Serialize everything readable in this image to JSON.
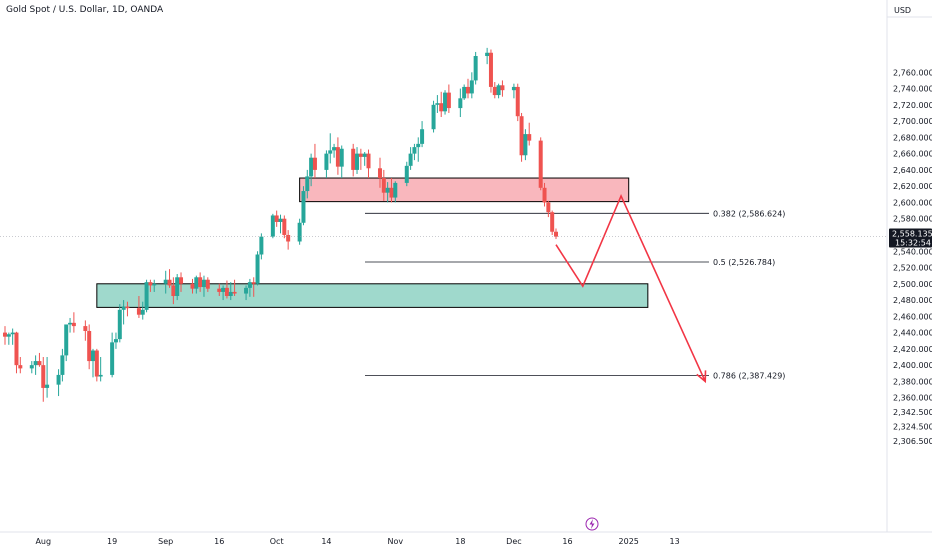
{
  "header": {
    "title": "Gold Spot / U.S. Dollar, 1D, OANDA"
  },
  "price_axis": {
    "currency": "USD"
  },
  "time_axis": {
    "bolt_icon": "bolt-icon"
  },
  "price_tag": {
    "price": "2,558.135",
    "countdown": "15:32:54"
  },
  "colors": {
    "up": "#26a69a",
    "down": "#ef5350",
    "resistance_fill": "#f9b7bd",
    "support_fill": "#9fd9cc",
    "arrow": "#f23645",
    "axis_bg": "#ffffff"
  },
  "chart_data": {
    "type": "candlestick",
    "title": "Gold Spot / U.S. Dollar, 1D, OANDA",
    "y_ticks": [
      {
        "label": "2,760.000",
        "value": 2760
      },
      {
        "label": "2,740.000",
        "value": 2740
      },
      {
        "label": "2,720.000",
        "value": 2720
      },
      {
        "label": "2,700.000",
        "value": 2700
      },
      {
        "label": "2,680.000",
        "value": 2680
      },
      {
        "label": "2,660.000",
        "value": 2660
      },
      {
        "label": "2,640.000",
        "value": 2640
      },
      {
        "label": "2,620.000",
        "value": 2620
      },
      {
        "label": "2,600.000",
        "value": 2600
      },
      {
        "label": "2,580.000",
        "value": 2580
      },
      {
        "label": "2,540.000",
        "value": 2540
      },
      {
        "label": "2,520.000",
        "value": 2520
      },
      {
        "label": "2,500.000",
        "value": 2500
      },
      {
        "label": "2,480.000",
        "value": 2480
      },
      {
        "label": "2,460.000",
        "value": 2460
      },
      {
        "label": "2,440.000",
        "value": 2440
      },
      {
        "label": "2,420.000",
        "value": 2420
      },
      {
        "label": "2,400.000",
        "value": 2400
      },
      {
        "label": "2,380.000",
        "value": 2380
      },
      {
        "label": "2,360.000",
        "value": 2360
      },
      {
        "label": "2,342.500",
        "value": 2342.5
      },
      {
        "label": "2,324.500",
        "value": 2324.5
      },
      {
        "label": "2,306.500",
        "value": 2306.5
      }
    ],
    "x_ticks": [
      {
        "label": "Aug",
        "date": "2024-08-01"
      },
      {
        "label": "19",
        "date": "2024-08-19"
      },
      {
        "label": "Sep",
        "date": "2024-09-02"
      },
      {
        "label": "16",
        "date": "2024-09-16"
      },
      {
        "label": "Oct",
        "date": "2024-10-01"
      },
      {
        "label": "14",
        "date": "2024-10-14"
      },
      {
        "label": "Nov",
        "date": "2024-11-01"
      },
      {
        "label": "18",
        "date": "2024-11-18"
      },
      {
        "label": "Dec",
        "date": "2024-12-02"
      },
      {
        "label": "16",
        "date": "2024-12-16"
      },
      {
        "label": "2025",
        "date": "2025-01-01"
      },
      {
        "label": "13",
        "date": "2025-01-13"
      }
    ],
    "candles": [
      {
        "date": "2024-07-22",
        "o": 2440,
        "h": 2448,
        "l": 2425,
        "c": 2435
      },
      {
        "date": "2024-07-23",
        "o": 2435,
        "h": 2440,
        "l": 2425,
        "c": 2438
      },
      {
        "date": "2024-07-24",
        "o": 2438,
        "h": 2445,
        "l": 2425,
        "c": 2440
      },
      {
        "date": "2024-07-25",
        "o": 2440,
        "h": 2441,
        "l": 2390,
        "c": 2400
      },
      {
        "date": "2024-07-26",
        "o": 2400,
        "h": 2410,
        "l": 2390,
        "c": 2396
      },
      {
        "date": "2024-07-29",
        "o": 2396,
        "h": 2405,
        "l": 2390,
        "c": 2400
      },
      {
        "date": "2024-07-30",
        "o": 2400,
        "h": 2412,
        "l": 2388,
        "c": 2405
      },
      {
        "date": "2024-07-31",
        "o": 2405,
        "h": 2415,
        "l": 2398,
        "c": 2400
      },
      {
        "date": "2024-08-01",
        "o": 2400,
        "h": 2410,
        "l": 2355,
        "c": 2372
      },
      {
        "date": "2024-08-02",
        "o": 2372,
        "h": 2410,
        "l": 2360,
        "c": 2376
      },
      {
        "date": "2024-08-05",
        "o": 2376,
        "h": 2395,
        "l": 2362,
        "c": 2388
      },
      {
        "date": "2024-08-06",
        "o": 2388,
        "h": 2420,
        "l": 2380,
        "c": 2412
      },
      {
        "date": "2024-08-07",
        "o": 2412,
        "h": 2450,
        "l": 2405,
        "c": 2450
      },
      {
        "date": "2024-08-08",
        "o": 2450,
        "h": 2458,
        "l": 2440,
        "c": 2452
      },
      {
        "date": "2024-08-09",
        "o": 2452,
        "h": 2465,
        "l": 2440,
        "c": 2448
      },
      {
        "date": "2024-08-12",
        "o": 2448,
        "h": 2455,
        "l": 2430,
        "c": 2442
      },
      {
        "date": "2024-08-13",
        "o": 2442,
        "h": 2450,
        "l": 2395,
        "c": 2405
      },
      {
        "date": "2024-08-14",
        "o": 2405,
        "h": 2420,
        "l": 2385,
        "c": 2418
      },
      {
        "date": "2024-08-15",
        "o": 2418,
        "h": 2420,
        "l": 2380,
        "c": 2386
      },
      {
        "date": "2024-08-16",
        "o": 2386,
        "h": 2410,
        "l": 2380,
        "c": 2388
      },
      {
        "date": "2024-08-19",
        "o": 2388,
        "h": 2440,
        "l": 2385,
        "c": 2428
      },
      {
        "date": "2024-08-20",
        "o": 2428,
        "h": 2440,
        "l": 2420,
        "c": 2432
      },
      {
        "date": "2024-08-21",
        "o": 2432,
        "h": 2475,
        "l": 2428,
        "c": 2468
      },
      {
        "date": "2024-08-22",
        "o": 2468,
        "h": 2480,
        "l": 2450,
        "c": 2472
      },
      {
        "date": "2024-08-23",
        "o": 2472,
        "h": 2478,
        "l": 2460,
        "c": 2470
      },
      {
        "date": "2024-08-26",
        "o": 2470,
        "h": 2485,
        "l": 2458,
        "c": 2462
      },
      {
        "date": "2024-08-27",
        "o": 2462,
        "h": 2478,
        "l": 2456,
        "c": 2468
      },
      {
        "date": "2024-08-28",
        "o": 2468,
        "h": 2505,
        "l": 2465,
        "c": 2502
      },
      {
        "date": "2024-08-29",
        "o": 2502,
        "h": 2505,
        "l": 2490,
        "c": 2498
      },
      {
        "date": "2024-08-30",
        "o": 2498,
        "h": 2505,
        "l": 2490,
        "c": 2500
      },
      {
        "date": "2024-09-02",
        "o": 2500,
        "h": 2516,
        "l": 2488,
        "c": 2505
      },
      {
        "date": "2024-09-03",
        "o": 2505,
        "h": 2518,
        "l": 2495,
        "c": 2498
      },
      {
        "date": "2024-09-04",
        "o": 2498,
        "h": 2508,
        "l": 2475,
        "c": 2485
      },
      {
        "date": "2024-09-05",
        "o": 2485,
        "h": 2512,
        "l": 2480,
        "c": 2508
      },
      {
        "date": "2024-09-06",
        "o": 2508,
        "h": 2514,
        "l": 2490,
        "c": 2500
      },
      {
        "date": "2024-09-09",
        "o": 2500,
        "h": 2506,
        "l": 2488,
        "c": 2494
      },
      {
        "date": "2024-09-10",
        "o": 2494,
        "h": 2510,
        "l": 2488,
        "c": 2508
      },
      {
        "date": "2024-09-11",
        "o": 2508,
        "h": 2514,
        "l": 2490,
        "c": 2496
      },
      {
        "date": "2024-09-12",
        "o": 2496,
        "h": 2510,
        "l": 2484,
        "c": 2505
      },
      {
        "date": "2024-09-13",
        "o": 2505,
        "h": 2508,
        "l": 2490,
        "c": 2494
      },
      {
        "date": "2024-09-16",
        "o": 2494,
        "h": 2500,
        "l": 2485,
        "c": 2490
      },
      {
        "date": "2024-09-17",
        "o": 2490,
        "h": 2498,
        "l": 2480,
        "c": 2495
      },
      {
        "date": "2024-09-18",
        "o": 2495,
        "h": 2504,
        "l": 2482,
        "c": 2485
      },
      {
        "date": "2024-09-19",
        "o": 2485,
        "h": 2502,
        "l": 2480,
        "c": 2490
      },
      {
        "date": "2024-09-20",
        "o": 2490,
        "h": 2505,
        "l": 2485,
        "c": 2488
      },
      {
        "date": "2024-09-23",
        "o": 2488,
        "h": 2498,
        "l": 2480,
        "c": 2495
      },
      {
        "date": "2024-09-24",
        "o": 2495,
        "h": 2506,
        "l": 2484,
        "c": 2502
      },
      {
        "date": "2024-09-25",
        "o": 2502,
        "h": 2508,
        "l": 2484,
        "c": 2500
      },
      {
        "date": "2024-09-26",
        "o": 2500,
        "h": 2540,
        "l": 2498,
        "c": 2536
      },
      {
        "date": "2024-09-27",
        "o": 2536,
        "h": 2562,
        "l": 2530,
        "c": 2558
      },
      {
        "date": "2024-09-30",
        "o": 2558,
        "h": 2586,
        "l": 2556,
        "c": 2584
      },
      {
        "date": "2024-10-01",
        "o": 2584,
        "h": 2590,
        "l": 2570,
        "c": 2576
      },
      {
        "date": "2024-10-02",
        "o": 2576,
        "h": 2585,
        "l": 2562,
        "c": 2580
      },
      {
        "date": "2024-10-03",
        "o": 2580,
        "h": 2584,
        "l": 2556,
        "c": 2560
      },
      {
        "date": "2024-10-04",
        "o": 2560,
        "h": 2566,
        "l": 2542,
        "c": 2552
      },
      {
        "date": "2024-10-07",
        "o": 2552,
        "h": 2580,
        "l": 2548,
        "c": 2575
      },
      {
        "date": "2024-10-08",
        "o": 2575,
        "h": 2620,
        "l": 2572,
        "c": 2614
      },
      {
        "date": "2024-10-09",
        "o": 2614,
        "h": 2640,
        "l": 2605,
        "c": 2632
      },
      {
        "date": "2024-10-10",
        "o": 2632,
        "h": 2660,
        "l": 2620,
        "c": 2655
      },
      {
        "date": "2024-10-11",
        "o": 2655,
        "h": 2672,
        "l": 2630,
        "c": 2640
      },
      {
        "date": "2024-10-14",
        "o": 2640,
        "h": 2664,
        "l": 2630,
        "c": 2660
      },
      {
        "date": "2024-10-15",
        "o": 2660,
        "h": 2685,
        "l": 2648,
        "c": 2664
      },
      {
        "date": "2024-10-16",
        "o": 2664,
        "h": 2672,
        "l": 2655,
        "c": 2668
      },
      {
        "date": "2024-10-17",
        "o": 2668,
        "h": 2680,
        "l": 2634,
        "c": 2644
      },
      {
        "date": "2024-10-18",
        "o": 2644,
        "h": 2670,
        "l": 2630,
        "c": 2666
      },
      {
        "date": "2024-10-21",
        "o": 2666,
        "h": 2672,
        "l": 2632,
        "c": 2640
      },
      {
        "date": "2024-10-22",
        "o": 2640,
        "h": 2668,
        "l": 2635,
        "c": 2660
      },
      {
        "date": "2024-10-23",
        "o": 2660,
        "h": 2666,
        "l": 2640,
        "c": 2656
      },
      {
        "date": "2024-10-24",
        "o": 2656,
        "h": 2662,
        "l": 2645,
        "c": 2660
      },
      {
        "date": "2024-10-25",
        "o": 2660,
        "h": 2665,
        "l": 2630,
        "c": 2642
      },
      {
        "date": "2024-10-28",
        "o": 2642,
        "h": 2655,
        "l": 2618,
        "c": 2630
      },
      {
        "date": "2024-10-29",
        "o": 2630,
        "h": 2640,
        "l": 2602,
        "c": 2612
      },
      {
        "date": "2024-10-30",
        "o": 2612,
        "h": 2625,
        "l": 2600,
        "c": 2618
      },
      {
        "date": "2024-10-31",
        "o": 2618,
        "h": 2630,
        "l": 2600,
        "c": 2606
      },
      {
        "date": "2024-11-01",
        "o": 2606,
        "h": 2626,
        "l": 2600,
        "c": 2624
      },
      {
        "date": "2024-11-04",
        "o": 2624,
        "h": 2650,
        "l": 2620,
        "c": 2645
      },
      {
        "date": "2024-11-05",
        "o": 2645,
        "h": 2668,
        "l": 2640,
        "c": 2660
      },
      {
        "date": "2024-11-06",
        "o": 2660,
        "h": 2672,
        "l": 2652,
        "c": 2668
      },
      {
        "date": "2024-11-07",
        "o": 2668,
        "h": 2680,
        "l": 2650,
        "c": 2672
      },
      {
        "date": "2024-11-08",
        "o": 2672,
        "h": 2700,
        "l": 2668,
        "c": 2690
      },
      {
        "date": "2024-11-11",
        "o": 2690,
        "h": 2725,
        "l": 2686,
        "c": 2720
      },
      {
        "date": "2024-11-12",
        "o": 2720,
        "h": 2732,
        "l": 2710,
        "c": 2722
      },
      {
        "date": "2024-11-13",
        "o": 2722,
        "h": 2736,
        "l": 2705,
        "c": 2712
      },
      {
        "date": "2024-11-14",
        "o": 2712,
        "h": 2738,
        "l": 2708,
        "c": 2735
      },
      {
        "date": "2024-11-15",
        "o": 2735,
        "h": 2745,
        "l": 2710,
        "c": 2716
      },
      {
        "date": "2024-11-18",
        "o": 2716,
        "h": 2740,
        "l": 2705,
        "c": 2728
      },
      {
        "date": "2024-11-19",
        "o": 2728,
        "h": 2745,
        "l": 2726,
        "c": 2742
      },
      {
        "date": "2024-11-20",
        "o": 2742,
        "h": 2752,
        "l": 2728,
        "c": 2734
      },
      {
        "date": "2024-11-21",
        "o": 2734,
        "h": 2760,
        "l": 2728,
        "c": 2750
      },
      {
        "date": "2024-11-22",
        "o": 2750,
        "h": 2785,
        "l": 2745,
        "c": 2780
      },
      {
        "date": "2024-11-25",
        "o": 2780,
        "h": 2790,
        "l": 2770,
        "c": 2784
      },
      {
        "date": "2024-11-26",
        "o": 2784,
        "h": 2788,
        "l": 2735,
        "c": 2742
      },
      {
        "date": "2024-11-27",
        "o": 2742,
        "h": 2748,
        "l": 2728,
        "c": 2732
      },
      {
        "date": "2024-11-28",
        "o": 2732,
        "h": 2746,
        "l": 2728,
        "c": 2744
      },
      {
        "date": "2024-11-29",
        "o": 2744,
        "h": 2750,
        "l": 2730,
        "c": 2738
      },
      {
        "date": "2024-12-02",
        "o": 2738,
        "h": 2746,
        "l": 2728,
        "c": 2742
      },
      {
        "date": "2024-12-03",
        "o": 2742,
        "h": 2746,
        "l": 2700,
        "c": 2706
      },
      {
        "date": "2024-12-04",
        "o": 2706,
        "h": 2710,
        "l": 2650,
        "c": 2658
      },
      {
        "date": "2024-12-05",
        "o": 2658,
        "h": 2690,
        "l": 2652,
        "c": 2684
      },
      {
        "date": "2024-12-06",
        "o": 2684,
        "h": 2698,
        "l": 2670,
        "c": 2676
      },
      {
        "date": "2024-12-09",
        "o": 2676,
        "h": 2680,
        "l": 2615,
        "c": 2618
      },
      {
        "date": "2024-12-10",
        "o": 2618,
        "h": 2624,
        "l": 2595,
        "c": 2600
      },
      {
        "date": "2024-12-11",
        "o": 2600,
        "h": 2602,
        "l": 2582,
        "c": 2588
      },
      {
        "date": "2024-12-12",
        "o": 2588,
        "h": 2590,
        "l": 2560,
        "c": 2564
      },
      {
        "date": "2024-12-13",
        "o": 2564,
        "h": 2568,
        "l": 2555,
        "c": 2558
      }
    ],
    "zones": [
      {
        "name": "resistance",
        "top": 2630,
        "bottom": 2601,
        "from": "2024-10-07",
        "to": "2025-01-01"
      },
      {
        "name": "support",
        "top": 2500,
        "bottom": 2471,
        "from": "2024-08-15",
        "to": "2025-01-06"
      }
    ],
    "fib_levels": [
      {
        "label": "0.382 (2,586.624)",
        "value": 2586.624
      },
      {
        "label": "0.5 (2,526.784)",
        "value": 2526.784
      },
      {
        "label": "0.786 (2,387.429)",
        "value": 2387.429
      }
    ],
    "projection": [
      {
        "date": "2024-12-13",
        "value": 2548
      },
      {
        "date": "2024-12-20",
        "value": 2497
      },
      {
        "date": "2024-12-30",
        "value": 2608
      },
      {
        "date": "2025-01-21",
        "value": 2380
      }
    ],
    "last_price": 2558.135
  }
}
